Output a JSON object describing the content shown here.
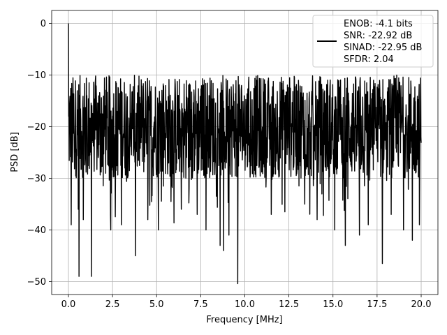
{
  "chart_data": {
    "type": "line",
    "title": "",
    "xlabel": "Frequency [MHz]",
    "ylabel": "PSD [dB]",
    "xlim": [
      -0.95,
      20.95
    ],
    "ylim": [
      -52.5,
      2.5
    ],
    "xticks": [
      0.0,
      2.5,
      5.0,
      7.5,
      10.0,
      12.5,
      15.0,
      17.5,
      20.0
    ],
    "xtick_labels": [
      "0.0",
      "2.5",
      "5.0",
      "7.5",
      "10.0",
      "12.5",
      "15.0",
      "17.5",
      "20.0"
    ],
    "yticks": [
      0,
      -10,
      -20,
      -30,
      -40,
      -50
    ],
    "ytick_labels": [
      "0",
      "−10",
      "−20",
      "−30",
      "−40",
      "−50"
    ],
    "grid": true,
    "legend_position": "top-right",
    "legend": {
      "lines": [
        "ENOB: -4.1 bits",
        "SNR: -22.92 dB",
        "SINAD: -22.95 dB",
        "SFDR: 2.04"
      ]
    },
    "series": [
      {
        "color": "#000000",
        "noise_floor_mean_db": -18,
        "spread_db": [
          -12,
          8
        ],
        "peak": {
          "x": 0.0,
          "y": 0.0
        },
        "x_range": [
          0.0,
          20.0
        ],
        "deep_notches": [
          {
            "x": 0.15,
            "y": -39
          },
          {
            "x": 0.6,
            "y": -35
          },
          {
            "x": 0.85,
            "y": -38
          },
          {
            "x": 0.55,
            "y": -36
          },
          {
            "x": 0.6,
            "y": -49
          },
          {
            "x": 1.3,
            "y": -49
          },
          {
            "x": 2.4,
            "y": -40
          },
          {
            "x": 3.0,
            "y": -39
          },
          {
            "x": 3.8,
            "y": -45
          },
          {
            "x": 4.5,
            "y": -38
          },
          {
            "x": 5.1,
            "y": -40
          },
          {
            "x": 6.4,
            "y": -36
          },
          {
            "x": 7.3,
            "y": -37
          },
          {
            "x": 7.8,
            "y": -40
          },
          {
            "x": 8.6,
            "y": -43
          },
          {
            "x": 8.8,
            "y": -44
          },
          {
            "x": 9.1,
            "y": -41
          },
          {
            "x": 9.6,
            "y": -50.4
          },
          {
            "x": 11.5,
            "y": -37
          },
          {
            "x": 13.4,
            "y": -35
          },
          {
            "x": 14.1,
            "y": -38
          },
          {
            "x": 15.1,
            "y": -40
          },
          {
            "x": 15.7,
            "y": -43
          },
          {
            "x": 16.5,
            "y": -41
          },
          {
            "x": 17.0,
            "y": -39
          },
          {
            "x": 17.8,
            "y": -46.5
          },
          {
            "x": 18.3,
            "y": -37
          },
          {
            "x": 19.0,
            "y": -40
          },
          {
            "x": 19.5,
            "y": -42
          },
          {
            "x": 19.9,
            "y": -39
          }
        ]
      }
    ]
  }
}
